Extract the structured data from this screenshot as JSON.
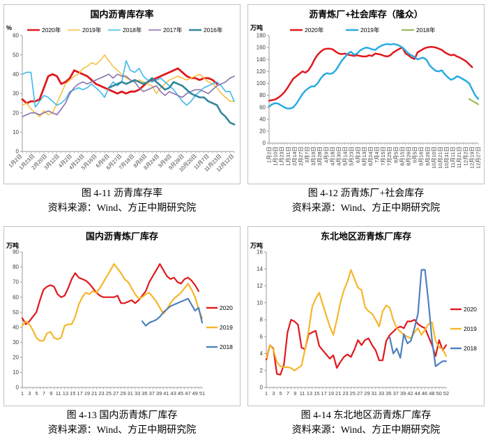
{
  "chart_data": [
    {
      "type": "line",
      "title": "国内沥青库存率",
      "unit": "%",
      "caption_title": "图 4-11 沥青库存率",
      "caption_source": "资料来源：Wind、方正中期研究院",
      "ymin": 0,
      "ymax": 60,
      "ystep": 10,
      "npoints": 50,
      "xlabel_mode": "diag",
      "xlabels": [
        "1月2日",
        "1月23日",
        "2月20日",
        "3月12日",
        "4月2日",
        "4月23日",
        "5月16日",
        "6月6日",
        "6月27日",
        "7月18日",
        "8月8日",
        "8月24日",
        "9月9日",
        "9月28日",
        "10月20日",
        "11月7日",
        "11月23日",
        "12月12日"
      ],
      "legend": {
        "pos": "top",
        "item_w": 58,
        "y": 36
      },
      "series": [
        {
          "name": "2020年",
          "color": "#e0181c",
          "w": 2.8,
          "start": 0,
          "values": [
            27,
            25,
            26,
            26,
            27,
            33,
            39,
            40,
            39,
            35,
            36,
            38,
            42,
            41,
            40,
            39,
            37,
            35,
            34,
            33,
            32,
            31,
            30,
            31,
            30,
            31,
            31,
            32,
            34,
            36,
            37,
            38,
            39,
            40,
            41,
            42,
            43,
            41,
            39,
            38,
            38,
            37,
            38,
            38,
            37,
            35
          ]
        },
        {
          "name": "2019年",
          "color": "#f6c142",
          "w": 1.6,
          "start": 0,
          "values": [
            24,
            25,
            22,
            20,
            18,
            21,
            19,
            20,
            25,
            30,
            35,
            37,
            39,
            40,
            43,
            44,
            46,
            45,
            47,
            50,
            47,
            44,
            42,
            40,
            38,
            37,
            36,
            37,
            36,
            35,
            34,
            30,
            33,
            35,
            37,
            38,
            39,
            38,
            37,
            38,
            39,
            40,
            38,
            36,
            35,
            33,
            30,
            28,
            26,
            26
          ]
        },
        {
          "name": "2018年",
          "color": "#3fb8e8",
          "w": 1.6,
          "start": 0,
          "values": [
            40,
            41,
            41,
            23,
            26,
            29,
            28,
            26,
            24,
            25,
            27,
            31,
            32,
            33,
            32,
            33,
            35,
            33,
            31,
            28,
            33,
            36,
            34,
            36,
            47,
            42,
            41,
            43,
            39,
            37,
            36,
            37,
            38,
            36,
            34,
            32,
            29,
            26,
            24,
            26,
            29,
            31,
            33,
            34,
            35,
            36,
            34,
            31,
            31,
            26
          ]
        },
        {
          "name": "2017年",
          "color": "#8a6fad",
          "w": 1.6,
          "start": 0,
          "values": [
            18,
            19,
            20,
            20,
            19,
            20,
            21,
            20,
            19,
            22,
            25,
            30,
            33,
            35,
            36,
            35,
            36,
            37,
            38,
            39,
            40,
            38,
            40,
            39,
            39,
            37,
            36,
            33,
            31,
            32,
            33,
            34,
            31,
            29,
            31,
            30,
            29,
            28,
            30,
            31,
            32,
            32,
            31,
            30,
            32,
            34,
            35,
            36,
            38,
            39
          ]
        },
        {
          "name": "2016年",
          "color": "#31859c",
          "w": 2.6,
          "start": 20,
          "values": [
            33,
            34,
            35,
            36,
            35,
            36,
            37,
            36,
            35,
            36,
            38,
            36,
            34,
            32,
            33,
            36,
            35,
            34,
            32,
            30,
            29,
            28,
            28,
            26,
            25,
            24,
            20,
            18,
            15,
            14
          ]
        }
      ]
    },
    {
      "type": "line",
      "title": "沥青炼厂+社会库存（隆众）",
      "unit": "万吨",
      "caption_title": "图 4-12 沥青炼厂+社会库存",
      "caption_source": "资料来源：Wind、方正中期研究院",
      "ymin": 0,
      "ymax": 180,
      "ystep": 20,
      "npoints": 70,
      "xlabel_mode": "vert",
      "xlabels": [
        "1月2日",
        "1月10日",
        "1月23日",
        "1月31日",
        "2月14日",
        "2月27日",
        "3月7日",
        "3月19日",
        "3月28日",
        "4月9日",
        "4月18日",
        "4月30日",
        "5月14日",
        "5月23日",
        "6月3日",
        "6月13日",
        "6月24日",
        "7月4日",
        "7月15日",
        "7月25日",
        "8月5日",
        "8月15日",
        "8月26日",
        "9月5日",
        "9月16日",
        "9月26日",
        "10月10日",
        "10月21日",
        "10月31日",
        "11月11日",
        "11月21日",
        "12月2日",
        "12月19日",
        "12月27日"
      ],
      "legend": {
        "pos": "top",
        "item_w": 80,
        "y": 36
      },
      "series": [
        {
          "name": "2020年",
          "color": "#e0181c",
          "w": 2.5,
          "start": 0,
          "values": [
            71,
            72,
            73,
            76,
            80,
            85,
            92,
            100,
            108,
            112,
            116,
            120,
            118,
            122,
            130,
            140,
            148,
            153,
            157,
            158,
            158,
            157,
            153,
            150,
            149,
            150,
            148,
            147,
            146,
            147,
            146,
            145,
            145,
            147,
            146,
            150,
            149,
            148,
            146,
            145,
            147,
            152,
            155,
            158,
            160,
            150,
            147,
            143,
            141,
            152,
            155,
            158,
            160,
            161,
            161,
            160,
            158,
            156,
            152,
            149,
            147,
            148,
            145,
            143,
            140,
            137,
            132,
            127
          ]
        },
        {
          "name": "2019年",
          "color": "#29abe2",
          "w": 2.5,
          "start": 0,
          "values": [
            61,
            65,
            67,
            66,
            63,
            60,
            58,
            58,
            60,
            66,
            74,
            82,
            88,
            92,
            95,
            95,
            100,
            108,
            114,
            117,
            116,
            117,
            122,
            130,
            138,
            144,
            150,
            153,
            148,
            150,
            155,
            158,
            160,
            159,
            157,
            156,
            160,
            163,
            165,
            166,
            165,
            166,
            165,
            163,
            160,
            155,
            150,
            147,
            144,
            140,
            142,
            143,
            139,
            130,
            125,
            121,
            120,
            122,
            115,
            110,
            106,
            108,
            112,
            110,
            107,
            104,
            100,
            90,
            80,
            74
          ]
        },
        {
          "name": "2018年",
          "color": "#9bbb59",
          "w": 2.2,
          "start": 66,
          "values": [
            74,
            71,
            68,
            65
          ]
        }
      ]
    },
    {
      "type": "line",
      "title": "国内沥青炼厂库存",
      "unit": "万吨",
      "caption_title": "图 4-13 国内沥青炼厂库存",
      "caption_source": "资料来源：Wind、方正中期研究院",
      "ymin": 0,
      "ymax": 90,
      "ystep": 10,
      "npoints": 52,
      "xlabel_mode": "horiz",
      "xlabels": [
        "1",
        "3",
        "5",
        "7",
        "9",
        "11",
        "13",
        "15",
        "17",
        "19",
        "21",
        "23",
        "25",
        "27",
        "29",
        "31",
        "33",
        "35",
        "37",
        "39",
        "41",
        "43",
        "45",
        "47",
        "49",
        "51"
      ],
      "legend": {
        "pos": "right",
        "y": 116,
        "dy": 28
      },
      "series": [
        {
          "name": "2020",
          "color": "#e0181c",
          "w": 2.2,
          "start": 0,
          "values": [
            46,
            42,
            44,
            47,
            50,
            58,
            65,
            67,
            68,
            67,
            62,
            60,
            61,
            66,
            72,
            76,
            73,
            72,
            71,
            69,
            66,
            63,
            61,
            60,
            60,
            60,
            60,
            61,
            56,
            56,
            57,
            58,
            56,
            58,
            61,
            64,
            70,
            74,
            78,
            82,
            78,
            74,
            72,
            73,
            70,
            69,
            72,
            73,
            71,
            68,
            64
          ]
        },
        {
          "name": "2019",
          "color": "#f6b62a",
          "w": 2.2,
          "start": 0,
          "values": [
            41,
            44,
            42,
            38,
            33,
            31,
            31,
            36,
            37,
            33,
            32,
            33,
            41,
            42,
            42,
            47,
            55,
            60,
            63,
            62,
            64,
            63,
            66,
            70,
            74,
            78,
            82,
            79,
            76,
            72,
            70,
            66,
            62,
            59,
            60,
            62,
            63,
            60,
            57,
            53,
            49,
            52,
            56,
            59,
            61,
            63,
            66,
            69,
            65,
            60,
            52,
            46
          ]
        },
        {
          "name": "2018",
          "color": "#4f81bd",
          "w": 2.2,
          "start": 34,
          "values": [
            44,
            41,
            43,
            44,
            45,
            47,
            50,
            52,
            54,
            55,
            56,
            57,
            58,
            59,
            55,
            51,
            53,
            43
          ]
        }
      ]
    },
    {
      "type": "line",
      "title": "东北地区沥青炼厂库存",
      "unit": "万吨",
      "caption_title": "图 4-14 东北地区沥青炼厂库存",
      "caption_source": "资料来源：Wind、方正中期研究院",
      "ymin": 0,
      "ymax": 16,
      "ystep": 2,
      "npoints": 52,
      "xlabel_mode": "horiz",
      "xlabels": [
        "1",
        "3",
        "5",
        "7",
        "9",
        "11",
        "13",
        "15",
        "17",
        "19",
        "21",
        "23",
        "25",
        "27",
        "29",
        "31",
        "33",
        "35",
        "37",
        "39",
        "42",
        "44",
        "46",
        "48",
        "50",
        "52"
      ],
      "legend": {
        "pos": "right",
        "y": 118,
        "dy": 28
      },
      "series": [
        {
          "name": "2020",
          "color": "#e0181c",
          "w": 2.2,
          "start": 0,
          "values": [
            3.3,
            5.0,
            4.6,
            1.6,
            1.5,
            2.7,
            6.5,
            8.0,
            7.8,
            7.4,
            4.7,
            4.5,
            6.3,
            6.5,
            6.7,
            4.9,
            4.4,
            3.9,
            3.4,
            3.8,
            2.3,
            3.0,
            3.6,
            3.9,
            3.6,
            4.5,
            5.6,
            5.0,
            5.6,
            5.8,
            5.0,
            4.4,
            3.2,
            3.2,
            5.5,
            6.2,
            6.6,
            7.0,
            7.2,
            7.0,
            7.8,
            7.8,
            8.0,
            7.5,
            7.2,
            7.0,
            6.0,
            5.0,
            3.7,
            5.6,
            4.4,
            5.0
          ]
        },
        {
          "name": "2019",
          "color": "#f6b62a",
          "w": 2.2,
          "start": 0,
          "values": [
            3.5,
            5.0,
            4.5,
            3.0,
            2.5,
            2.4,
            2.4,
            2.3,
            2.0,
            2.3,
            2.6,
            4.5,
            6.7,
            9.5,
            10.5,
            11.2,
            9.8,
            8.5,
            7.2,
            6.2,
            8.0,
            10.0,
            11.5,
            12.5,
            13.9,
            12.8,
            11.8,
            11.5,
            9.5,
            9.0,
            8.7,
            8.0,
            7.2,
            9.0,
            9.7,
            9.4,
            8.0,
            7.0,
            6.6,
            6.2,
            6.0,
            5.8,
            6.5,
            7.0,
            6.2,
            6.8,
            7.5,
            7.7,
            5.5,
            4.8,
            4.5,
            3.7
          ]
        },
        {
          "name": "2018",
          "color": "#4f81bd",
          "w": 2.2,
          "start": 35,
          "values": [
            5.9,
            4.0,
            4.6,
            3.5,
            6.3,
            5.2,
            5.5,
            7.0,
            8.7,
            13.9,
            13.9,
            10.0,
            5.5,
            2.5,
            2.8,
            3.1,
            3.1
          ]
        }
      ]
    }
  ],
  "style": {
    "axis_color": "#9a9a9a",
    "tick_color": "#8c8c8c"
  }
}
